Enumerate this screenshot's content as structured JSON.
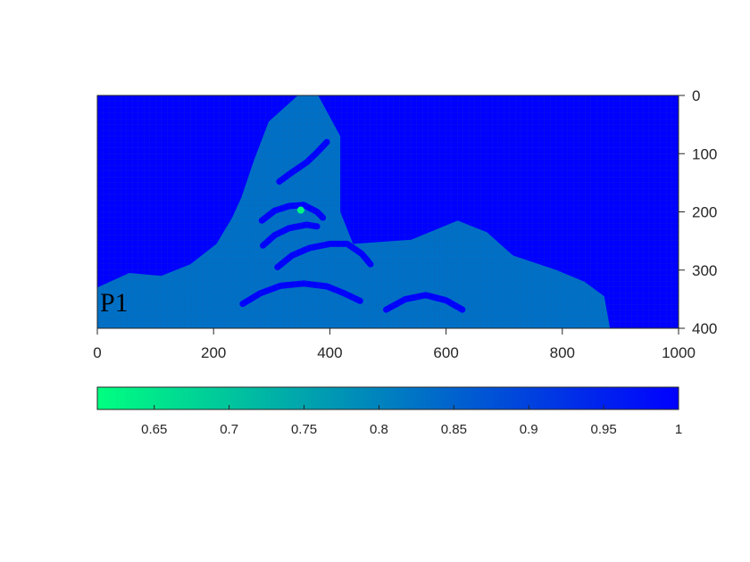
{
  "chart_data": {
    "type": "heatmap",
    "colormap": "winter",
    "colors": {
      "low": "#00FF80",
      "high": "#0000FF",
      "grid": "#2a5a74",
      "axis": "#262626"
    },
    "grid": true,
    "xlim": [
      0,
      1000
    ],
    "ylim": [
      0,
      400
    ],
    "y_reversed": true,
    "y_axis_side": "right",
    "xticks": [
      0,
      200,
      400,
      600,
      800,
      1000
    ],
    "xtick_labels": [
      "0",
      "200",
      "400",
      "600",
      "800",
      "1000"
    ],
    "yticks": [
      0,
      100,
      200,
      300,
      400
    ],
    "ytick_labels": [
      "0",
      "100",
      "200",
      "300",
      "400"
    ],
    "clim": [
      0.612,
      1
    ],
    "colorbar": {
      "orientation": "horizontal",
      "placement": "below",
      "ticks": [
        0.65,
        0.7,
        0.75,
        0.8,
        0.85,
        0.9,
        0.95,
        1
      ],
      "tick_labels": [
        "0.65",
        "0.7",
        "0.75",
        "0.8",
        "0.85",
        "0.9",
        "0.95",
        "1"
      ]
    },
    "background_value": 1.0,
    "regions": [
      {
        "value": 0.83,
        "polygon": [
          [
            0,
            400
          ],
          [
            0,
            330
          ],
          [
            55,
            305
          ],
          [
            110,
            310
          ],
          [
            160,
            290
          ],
          [
            205,
            255
          ],
          [
            232,
            210
          ],
          [
            248,
            175
          ],
          [
            270,
            110
          ],
          [
            295,
            45
          ],
          [
            345,
            0
          ],
          [
            380,
            0
          ],
          [
            418,
            70
          ],
          [
            418,
            200
          ],
          [
            440,
            255
          ],
          [
            540,
            248
          ],
          [
            620,
            215
          ],
          [
            670,
            235
          ],
          [
            715,
            275
          ],
          [
            790,
            300
          ],
          [
            838,
            320
          ],
          [
            872,
            345
          ],
          [
            882,
            400
          ]
        ]
      }
    ],
    "arcs": [
      {
        "value": 1.0,
        "points": [
          [
            313,
            148
          ],
          [
            335,
            132
          ],
          [
            360,
            115
          ],
          [
            378,
            98
          ],
          [
            395,
            80
          ]
        ]
      },
      {
        "value": 1.0,
        "points": [
          [
            283,
            215
          ],
          [
            305,
            198
          ],
          [
            330,
            190
          ],
          [
            355,
            188
          ],
          [
            378,
            200
          ],
          [
            388,
            210
          ]
        ]
      },
      {
        "value": 1.0,
        "points": [
          [
            285,
            258
          ],
          [
            305,
            240
          ],
          [
            330,
            228
          ],
          [
            360,
            222
          ],
          [
            378,
            225
          ]
        ]
      },
      {
        "value": 1.0,
        "points": [
          [
            310,
            295
          ],
          [
            335,
            275
          ],
          [
            365,
            262
          ],
          [
            400,
            255
          ],
          [
            430,
            255
          ],
          [
            455,
            272
          ],
          [
            470,
            290
          ]
        ]
      },
      {
        "value": 1.0,
        "points": [
          [
            250,
            358
          ],
          [
            280,
            340
          ],
          [
            315,
            327
          ],
          [
            355,
            323
          ],
          [
            395,
            328
          ],
          [
            425,
            340
          ],
          [
            452,
            353
          ]
        ]
      },
      {
        "value": 1.0,
        "points": [
          [
            497,
            368
          ],
          [
            530,
            350
          ],
          [
            565,
            343
          ],
          [
            600,
            352
          ],
          [
            628,
            368
          ]
        ]
      }
    ],
    "hotspots": [
      {
        "value": 0.612,
        "x": 350,
        "y": 197
      }
    ],
    "annotations": [
      "P1"
    ]
  }
}
